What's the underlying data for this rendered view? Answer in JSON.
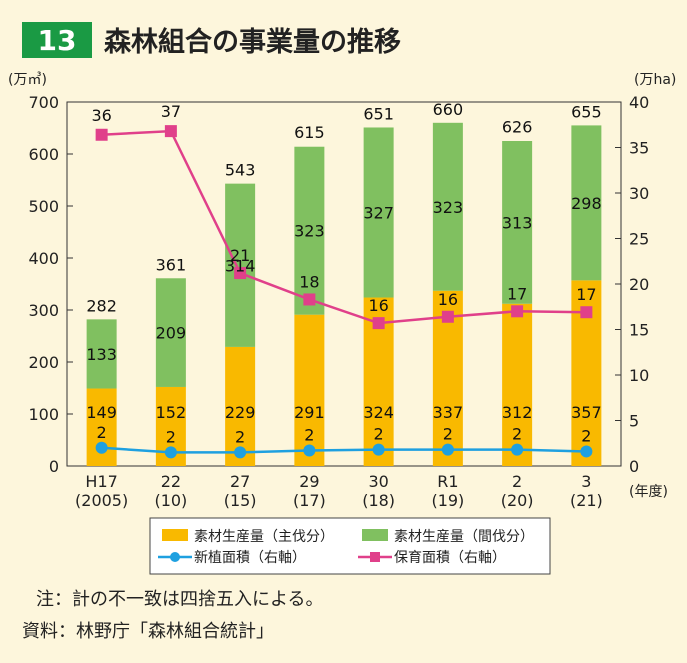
{
  "header": {
    "number": "13",
    "title": "森林組合の事業量の推移"
  },
  "colors": {
    "number_bg": "#1a9a44",
    "title": "#222222",
    "main_cut": "#f9b900",
    "thinning": "#80c060",
    "planting": "#1ea0e0",
    "nursing": "#e0408a",
    "background": "#fdf6dc"
  },
  "chart_data": {
    "type": "bar",
    "categories": [
      [
        "H17",
        "(2005)"
      ],
      [
        "22",
        "(10)"
      ],
      [
        "27",
        "(15)"
      ],
      [
        "29",
        "(17)"
      ],
      [
        "30",
        "(18)"
      ],
      [
        "R1",
        "(19)"
      ],
      [
        "2",
        "(20)"
      ],
      [
        "3",
        "(21)"
      ]
    ],
    "xlabel_unit": "(年度)",
    "left_axis": {
      "unit": "(万㎥)",
      "min": 0,
      "max": 700,
      "ticks": [
        0,
        100,
        200,
        300,
        400,
        500,
        600,
        700
      ]
    },
    "right_axis": {
      "unit": "(万ha)",
      "min": 0,
      "max": 40,
      "ticks": [
        0,
        5,
        10,
        15,
        20,
        25,
        30,
        35,
        40
      ]
    },
    "stacked_series": [
      {
        "name": "素材生産量（主伐分）",
        "values": [
          149,
          152,
          229,
          291,
          324,
          337,
          312,
          357
        ],
        "color": "#f9b900"
      },
      {
        "name": "素材生産量（間伐分）",
        "values": [
          133,
          209,
          314,
          323,
          327,
          323,
          313,
          298
        ],
        "color": "#80c060"
      }
    ],
    "totals": [
      282,
      361,
      543,
      615,
      651,
      660,
      626,
      655
    ],
    "line_series": [
      {
        "name": "新植面積（右軸）",
        "values": [
          2,
          2,
          2,
          2,
          2,
          2,
          2,
          2
        ],
        "plot_values": [
          2.0,
          1.5,
          1.5,
          1.7,
          1.8,
          1.8,
          1.8,
          1.6
        ],
        "color": "#1ea0e0",
        "marker": "circle",
        "axis": "right"
      },
      {
        "name": "保育面積（右軸）",
        "values": [
          36,
          37,
          21,
          18,
          16,
          16,
          17,
          17
        ],
        "plot_values": [
          36.4,
          36.8,
          21.2,
          18.3,
          15.7,
          16.4,
          17.0,
          16.9
        ],
        "color": "#e0408a",
        "marker": "square",
        "axis": "right"
      }
    ],
    "legend_position": "bottom",
    "grid": false
  },
  "notes": {
    "note1": "注：計の不一致は四捨五入による。",
    "note2": "資料：林野庁「森林組合統計」"
  }
}
